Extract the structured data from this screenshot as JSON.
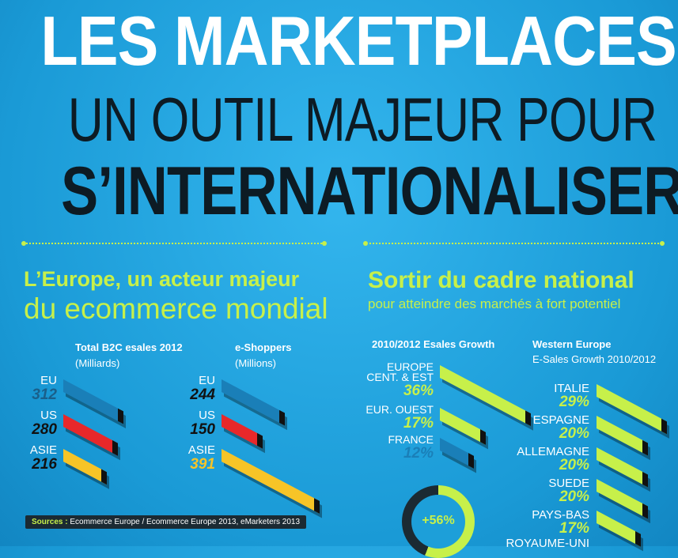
{
  "title": {
    "line1": "LES MARKETPLACES",
    "line2": "UN OUTIL MAJEUR POUR",
    "line3": "S’INTERNATIONALISER"
  },
  "left": {
    "heading": "L’Europe, un acteur majeur",
    "subheading": "du ecommerce mondial",
    "chart_a": {
      "title": "Total B2C esales 2012",
      "unit": "(Milliards)"
    },
    "chart_b": {
      "title": "e-Shoppers",
      "unit": "(Millions)"
    },
    "sources_label": "Sources :",
    "sources_text": " Ecommerce Europe / Ecommerce Europe 2013, eMarketers 2013"
  },
  "right": {
    "heading": "Sortir du cadre national",
    "subheading": "pour atteindre des marchés à fort potentiel",
    "chart_c": {
      "title": "2010/2012 Esales Growth"
    },
    "chart_d": {
      "title": "Western Europe",
      "subtitle": "E-Sales Growth 2010/2012"
    },
    "donut_label": "+56%",
    "donut_value": 56
  },
  "colors": {
    "background": "#1fa6e0",
    "accent_green": "#c7f04a",
    "dark": "#0d1b24",
    "bar_blue": "#1a7fb8",
    "bar_red": "#e8282a",
    "bar_yellow": "#f7c427"
  },
  "chart_data": [
    {
      "type": "bar",
      "title": "Total B2C esales 2012",
      "ylabel": "(Milliards)",
      "categories": [
        "EU",
        "US",
        "ASIE"
      ],
      "values": [
        312,
        280,
        216
      ]
    },
    {
      "type": "bar",
      "title": "e-Shoppers",
      "ylabel": "(Millions)",
      "categories": [
        "EU",
        "US",
        "ASIE"
      ],
      "values": [
        244,
        150,
        391
      ]
    },
    {
      "type": "bar",
      "title": "2010/2012 Esales Growth",
      "categories": [
        "EUROPE CENT. & EST",
        "EUR. OUEST",
        "FRANCE"
      ],
      "category_lines": [
        [
          "EUROPE",
          "CENT. & EST"
        ],
        [
          "EUR. OUEST"
        ],
        [
          "FRANCE"
        ]
      ],
      "values": [
        36,
        17,
        12
      ],
      "value_labels": [
        "36%",
        "17%",
        "12%"
      ]
    },
    {
      "type": "bar",
      "title": "Western Europe",
      "subtitle": "E-Sales Growth 2010/2012",
      "categories": [
        "ITALIE",
        "ESPAGNE",
        "ALLEMAGNE",
        "SUEDE",
        "PAYS-BAS",
        "ROYAUME-UNI"
      ],
      "values": [
        29,
        20,
        20,
        20,
        17,
        null
      ],
      "value_labels": [
        "29%",
        "20%",
        "20%",
        "20%",
        "17%",
        ""
      ]
    }
  ]
}
